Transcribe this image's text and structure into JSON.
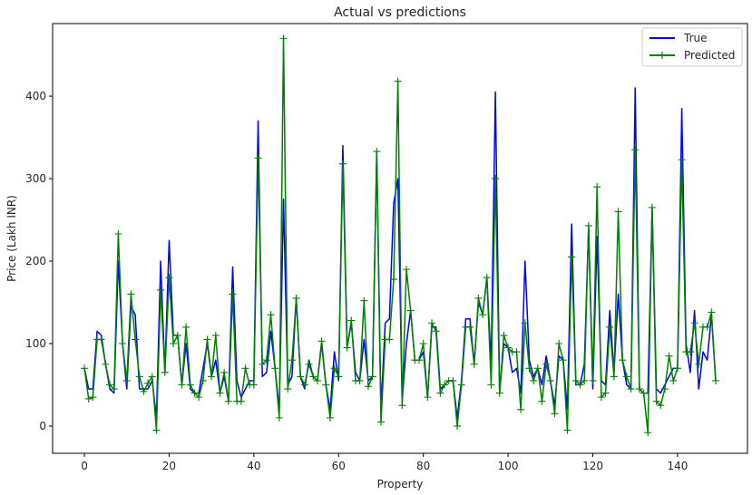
{
  "chart_data": {
    "type": "line",
    "title": "Actual vs predictions",
    "xlabel": "Property",
    "ylabel": "Price (Lakh INR)",
    "xlim": [
      -7.5,
      156.5
    ],
    "ylim": [
      -33,
      488
    ],
    "xticks": [
      0,
      20,
      40,
      60,
      80,
      100,
      120,
      140
    ],
    "yticks": [
      0,
      100,
      200,
      300,
      400
    ],
    "grid": false,
    "legend_position": "top-right",
    "series": [
      {
        "name": "True",
        "color": "#0000ff",
        "marker": "none",
        "values": [
          70,
          45,
          45,
          115,
          110,
          75,
          45,
          40,
          200,
          100,
          45,
          145,
          135,
          45,
          45,
          45,
          55,
          10,
          200,
          65,
          225,
          110,
          110,
          50,
          100,
          45,
          40,
          40,
          70,
          100,
          60,
          80,
          40,
          60,
          30,
          193,
          55,
          35,
          45,
          55,
          55,
          370,
          60,
          65,
          115,
          70,
          20,
          275,
          50,
          60,
          155,
          60,
          45,
          80,
          60,
          55,
          100,
          50,
          20,
          90,
          55,
          340,
          95,
          125,
          65,
          55,
          105,
          55,
          60,
          330,
          20,
          125,
          130,
          270,
          300,
          30,
          100,
          140,
          80,
          80,
          90,
          35,
          120,
          120,
          45,
          50,
          55,
          55,
          10,
          55,
          130,
          130,
          75,
          150,
          135,
          180,
          75,
          405,
          40,
          100,
          95,
          65,
          70,
          40,
          200,
          80,
          60,
          70,
          50,
          85,
          55,
          25,
          85,
          80,
          20,
          245,
          50,
          50,
          75,
          240,
          45,
          230,
          55,
          50,
          140,
          65,
          160,
          80,
          50,
          45,
          410,
          45,
          40,
          40,
          265,
          45,
          40,
          50,
          60,
          70,
          70,
          385,
          100,
          65,
          140,
          45,
          90,
          80,
          135,
          55
        ]
      },
      {
        "name": "Predicted",
        "color": "#008000",
        "marker": "plus",
        "values": [
          70,
          33,
          35,
          105,
          105,
          75,
          50,
          45,
          233,
          100,
          55,
          160,
          105,
          60,
          42,
          52,
          60,
          -5,
          165,
          65,
          180,
          100,
          110,
          50,
          120,
          50,
          40,
          35,
          55,
          105,
          60,
          110,
          40,
          65,
          30,
          160,
          30,
          30,
          70,
          50,
          50,
          325,
          75,
          80,
          135,
          70,
          10,
          470,
          45,
          80,
          155,
          60,
          50,
          75,
          60,
          55,
          103,
          50,
          10,
          70,
          60,
          318,
          95,
          128,
          55,
          55,
          152,
          48,
          60,
          333,
          5,
          105,
          105,
          178,
          418,
          25,
          190,
          140,
          80,
          80,
          100,
          35,
          125,
          115,
          40,
          50,
          55,
          55,
          0,
          50,
          120,
          120,
          75,
          155,
          135,
          180,
          50,
          300,
          40,
          110,
          95,
          90,
          90,
          20,
          125,
          70,
          55,
          70,
          30,
          75,
          55,
          15,
          100,
          80,
          -5,
          205,
          55,
          50,
          55,
          243,
          55,
          290,
          35,
          40,
          120,
          60,
          260,
          80,
          60,
          45,
          335,
          45,
          40,
          -8,
          265,
          30,
          25,
          45,
          85,
          55,
          70,
          323,
          90,
          90,
          125,
          75,
          120,
          120,
          138,
          55
        ]
      }
    ]
  }
}
